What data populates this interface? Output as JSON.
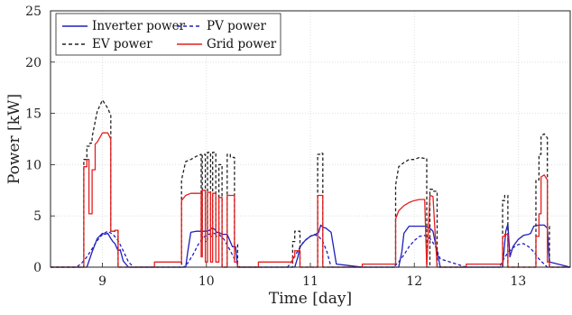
{
  "chart_data": {
    "type": "line",
    "xlabel": "Time [day]",
    "ylabel": "Power [kW]",
    "xlim": [
      8.5,
      13.5
    ],
    "ylim": [
      0,
      25
    ],
    "x_ticks": [
      9,
      10,
      11,
      12,
      13
    ],
    "y_ticks": [
      0,
      5,
      10,
      15,
      20,
      25
    ],
    "grid": true,
    "legend_position": "top-left",
    "series": [
      {
        "name": "Inverter power",
        "color": "#1f1fbf",
        "dash": "solid",
        "x": [
          8.5,
          8.85,
          8.9,
          8.95,
          9.0,
          9.02,
          9.05,
          9.08,
          9.1,
          9.12,
          9.15,
          9.17,
          9.2,
          9.25,
          9.5,
          9.8,
          9.82,
          9.85,
          9.9,
          9.95,
          10.0,
          10.03,
          10.05,
          10.08,
          10.1,
          10.12,
          10.15,
          10.2,
          10.25,
          10.28,
          10.3,
          10.5,
          10.85,
          10.88,
          10.9,
          10.95,
          11.0,
          11.05,
          11.08,
          11.1,
          11.12,
          11.15,
          11.2,
          11.25,
          11.5,
          11.85,
          11.88,
          11.9,
          11.95,
          12.0,
          12.05,
          12.1,
          12.12,
          12.15,
          12.18,
          12.2,
          12.25,
          12.5,
          12.85,
          12.88,
          12.9,
          12.92,
          12.95,
          13.0,
          13.05,
          13.1,
          13.12,
          13.15,
          13.2,
          13.25,
          13.28,
          13.3,
          13.5
        ],
        "y": [
          0,
          0,
          1.5,
          2.8,
          3.3,
          3.2,
          3.3,
          2.8,
          2.5,
          2.3,
          1.6,
          1.7,
          0.6,
          0,
          0,
          0,
          1.5,
          3.4,
          3.5,
          3.5,
          3.5,
          3.6,
          3.8,
          3.7,
          3.4,
          3.4,
          3.2,
          3.2,
          2.0,
          2.0,
          0,
          0,
          0,
          1.0,
          2.0,
          2.6,
          3.0,
          3.2,
          3.4,
          4.1,
          3.9,
          3.8,
          3.4,
          0.3,
          0,
          0,
          1.5,
          3.3,
          4.0,
          4.0,
          4.0,
          4.0,
          3.9,
          3.8,
          3.5,
          2.5,
          0,
          0,
          0,
          3.5,
          4.2,
          1.0,
          2.0,
          2.7,
          3.1,
          3.2,
          3.3,
          4.0,
          4.1,
          4.1,
          3.8,
          0.5,
          0
        ]
      },
      {
        "name": "PV power",
        "color": "#1f1fbf",
        "dash": "dashed",
        "x": [
          8.5,
          8.75,
          8.8,
          8.85,
          8.9,
          8.95,
          9.0,
          9.05,
          9.1,
          9.15,
          9.2,
          9.25,
          9.3,
          9.5,
          9.78,
          9.82,
          9.87,
          9.92,
          9.97,
          10.02,
          10.07,
          10.12,
          10.17,
          10.22,
          10.27,
          10.32,
          10.5,
          10.78,
          10.83,
          10.88,
          10.93,
          10.98,
          11.03,
          11.08,
          11.12,
          11.16,
          11.2,
          11.5,
          11.8,
          11.85,
          11.9,
          11.95,
          12.0,
          12.05,
          12.1,
          12.15,
          12.2,
          12.25,
          12.5,
          12.82,
          12.86,
          12.9,
          12.95,
          13.0,
          13.05,
          13.1,
          13.15,
          13.2,
          13.25,
          13.28,
          13.5
        ],
        "y": [
          0,
          0,
          0.4,
          1.0,
          1.8,
          2.6,
          3.2,
          3.5,
          3.2,
          2.6,
          1.6,
          0.5,
          0,
          0,
          0,
          0.4,
          1.2,
          2.2,
          2.9,
          3.2,
          3.3,
          3.2,
          2.7,
          1.8,
          0.8,
          0,
          0,
          0,
          0.7,
          1.6,
          2.4,
          2.9,
          3.2,
          3.0,
          2.5,
          1.5,
          0,
          0,
          0,
          0.5,
          1.2,
          2.0,
          2.6,
          3.0,
          3.1,
          2.8,
          2.1,
          0.8,
          0,
          0,
          0.8,
          1.4,
          1.9,
          2.2,
          2.3,
          2.0,
          1.5,
          0.8,
          0.3,
          0,
          0
        ]
      },
      {
        "name": "EV power",
        "color": "#222222",
        "dash": "dashed",
        "x": [
          8.5,
          8.82,
          8.82,
          8.85,
          8.85,
          8.88,
          8.88,
          8.9,
          8.9,
          8.95,
          9.0,
          9.05,
          9.08,
          9.08,
          9.12,
          9.12,
          9.15,
          9.15,
          9.2,
          9.5,
          9.76,
          9.76,
          9.8,
          9.85,
          9.9,
          9.95,
          9.95,
          9.96,
          9.96,
          9.99,
          9.99,
          10.01,
          10.01,
          10.04,
          10.04,
          10.06,
          10.06,
          10.09,
          10.09,
          10.12,
          10.12,
          10.15,
          10.15,
          10.2,
          10.2,
          10.23,
          10.23,
          10.27,
          10.27,
          10.3,
          10.3,
          10.5,
          10.83,
          10.83,
          10.85,
          10.85,
          10.9,
          10.9,
          11.07,
          11.07,
          11.1,
          11.1,
          11.12,
          11.12,
          11.5,
          11.82,
          11.82,
          11.85,
          11.9,
          11.95,
          12.0,
          12.05,
          12.1,
          12.12,
          12.12,
          12.15,
          12.15,
          12.18,
          12.18,
          12.22,
          12.22,
          12.5,
          12.85,
          12.85,
          12.87,
          12.87,
          12.9,
          12.9,
          13.17,
          13.17,
          13.2,
          13.2,
          13.22,
          13.22,
          13.25,
          13.28,
          13.28,
          13.3,
          13.3,
          13.5
        ],
        "y": [
          0,
          0,
          10.5,
          10.5,
          11.8,
          11.8,
          12.1,
          12.1,
          12.7,
          15.2,
          16.3,
          15.5,
          14.8,
          3.5,
          3.5,
          3.6,
          3.6,
          0,
          0,
          0,
          0,
          8.5,
          10.3,
          10.5,
          10.8,
          11.0,
          2.5,
          2.5,
          11.0,
          11.0,
          2.5,
          2.5,
          11.2,
          11.2,
          3.0,
          3.0,
          11.2,
          11.2,
          3.0,
          3.0,
          10.0,
          10.0,
          0,
          0,
          11.0,
          11.0,
          10.7,
          10.7,
          2.2,
          2.2,
          0,
          0,
          0,
          2.5,
          2.5,
          3.5,
          3.5,
          0,
          0,
          11.0,
          11.0,
          11.1,
          11.1,
          0,
          0,
          0,
          8.0,
          9.8,
          10.2,
          10.5,
          10.5,
          10.7,
          10.6,
          10.6,
          0,
          0,
          7.6,
          7.6,
          7.4,
          7.4,
          0,
          0,
          0,
          6.5,
          6.5,
          7.0,
          7.0,
          0,
          0,
          8.5,
          8.5,
          11.0,
          11.0,
          12.8,
          13.0,
          12.6,
          4.0,
          4.0,
          0,
          0
        ]
      },
      {
        "name": "Grid power",
        "color": "#e41f1f",
        "dash": "solid",
        "x": [
          8.5,
          8.82,
          8.82,
          8.85,
          8.85,
          8.87,
          8.87,
          8.9,
          8.9,
          8.93,
          8.93,
          8.95,
          9.0,
          9.05,
          9.08,
          9.08,
          9.12,
          9.12,
          9.15,
          9.15,
          9.2,
          9.5,
          9.5,
          9.76,
          9.76,
          9.8,
          9.85,
          9.9,
          9.95,
          9.95,
          9.96,
          9.96,
          9.99,
          9.99,
          10.01,
          10.01,
          10.04,
          10.04,
          10.06,
          10.06,
          10.09,
          10.09,
          10.12,
          10.12,
          10.15,
          10.15,
          10.2,
          10.2,
          10.23,
          10.23,
          10.27,
          10.27,
          10.3,
          10.3,
          10.5,
          10.5,
          10.83,
          10.83,
          10.85,
          10.85,
          10.9,
          10.9,
          11.07,
          11.07,
          11.1,
          11.1,
          11.12,
          11.12,
          11.5,
          11.5,
          11.82,
          11.82,
          11.85,
          11.9,
          11.95,
          12.0,
          12.05,
          12.1,
          12.12,
          12.12,
          12.15,
          12.15,
          12.18,
          12.18,
          12.22,
          12.22,
          12.5,
          12.5,
          12.85,
          12.85,
          12.87,
          12.87,
          12.9,
          12.9,
          13.17,
          13.17,
          13.2,
          13.2,
          13.22,
          13.22,
          13.25,
          13.28,
          13.28,
          13.3,
          13.3,
          13.5
        ],
        "y": [
          0,
          0,
          9.8,
          9.8,
          10.5,
          10.5,
          5.2,
          5.2,
          9.5,
          9.5,
          12.0,
          12.2,
          13.1,
          13.1,
          12.5,
          3.5,
          3.5,
          3.6,
          3.6,
          0,
          0,
          0,
          0.5,
          0.5,
          6.5,
          7.0,
          7.2,
          7.2,
          7.2,
          1.0,
          1.0,
          7.5,
          7.5,
          0.5,
          0.5,
          7.3,
          7.3,
          0.5,
          0.5,
          7.2,
          7.2,
          0.5,
          0.5,
          6.8,
          6.8,
          0,
          0,
          7.0,
          7.0,
          7.0,
          7.0,
          0.5,
          0.5,
          0,
          0,
          0.5,
          0.5,
          1.0,
          1.0,
          1.6,
          1.6,
          0,
          0,
          7.0,
          7.0,
          7.0,
          7.0,
          0,
          0,
          0.3,
          0.3,
          4.7,
          5.5,
          6.0,
          6.3,
          6.5,
          6.6,
          6.6,
          0,
          0,
          7.0,
          7.0,
          6.9,
          6.9,
          0,
          0,
          0,
          0.3,
          0.3,
          3.0,
          3.0,
          3.2,
          3.2,
          0,
          0,
          3.0,
          3.0,
          5.2,
          5.2,
          8.8,
          9.0,
          8.5,
          0.5,
          0.5,
          0,
          0
        ]
      }
    ]
  }
}
